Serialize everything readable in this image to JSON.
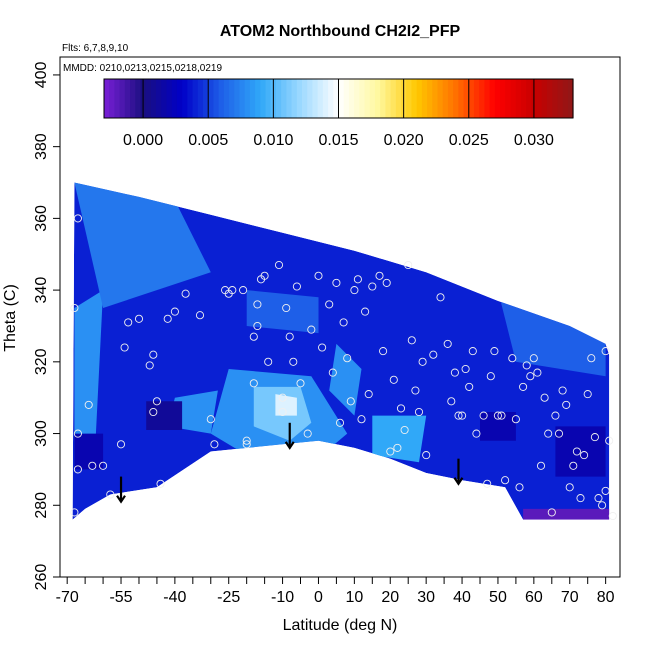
{
  "chart_data": {
    "type": "heatmap",
    "title": "ATOM2 Northbound CH2I2_PFP",
    "note_flights": "Flts: 6,7,8,9,10",
    "note_dates": "MMDD: 0210,0213,0215,0218,0219",
    "xlabel": "Latitude (deg N)",
    "ylabel": "Theta (C)",
    "xlim": [
      -72,
      84
    ],
    "ylim": [
      260,
      405
    ],
    "x_ticks_labeled": [
      -70,
      -55,
      -40,
      -25,
      -10,
      0,
      10,
      20,
      30,
      40,
      50,
      60,
      70,
      80
    ],
    "x_ticks_minor": [
      -65,
      -60,
      -50,
      -45,
      -35,
      -30,
      -20,
      -15,
      -5,
      5,
      15,
      25,
      35,
      45,
      55,
      65,
      75
    ],
    "y_ticks": [
      260,
      280,
      300,
      320,
      340,
      360,
      380,
      400
    ],
    "colorbar": {
      "range": [
        -0.003,
        0.033
      ],
      "ticks": [
        0.0,
        0.005,
        0.01,
        0.015,
        0.02,
        0.025,
        0.03
      ],
      "tick_labels": [
        "0.000",
        "0.005",
        "0.010",
        "0.015",
        "0.020",
        "0.025",
        "0.030"
      ],
      "colors": [
        "#7a1fd8",
        "#1a0f80",
        "#0000c8",
        "#1e5fe8",
        "#30a8f8",
        "#9ad8ff",
        "#ffffff",
        "#fff8a0",
        "#ffc800",
        "#ff7000",
        "#ff0000",
        "#c80000",
        "#901818"
      ]
    },
    "upper_boundary": [
      [
        -68,
        370
      ],
      [
        -50,
        366
      ],
      [
        -30,
        361
      ],
      [
        -10,
        356
      ],
      [
        10,
        351
      ],
      [
        30,
        345
      ],
      [
        50,
        337
      ],
      [
        70,
        330
      ],
      [
        80,
        325
      ],
      [
        81,
        322
      ]
    ],
    "lower_boundary": [
      [
        -68.5,
        276
      ],
      [
        -65,
        279
      ],
      [
        -58,
        283
      ],
      [
        -45,
        285
      ],
      [
        -30,
        295
      ],
      [
        -10,
        297
      ],
      [
        0,
        298
      ],
      [
        10,
        296
      ],
      [
        20,
        293
      ],
      [
        30,
        289
      ],
      [
        40,
        287
      ],
      [
        52,
        285
      ],
      [
        57,
        276
      ],
      [
        81,
        276
      ]
    ],
    "background_value": 0.004,
    "patches": [
      {
        "poly": [
          [
            -25,
            318
          ],
          [
            -2,
            316
          ],
          [
            8,
            300
          ],
          [
            -5,
            289
          ],
          [
            -20,
            294
          ],
          [
            -30,
            300
          ]
        ],
        "value": 0.008
      },
      {
        "poly": [
          [
            -18,
            313
          ],
          [
            -5,
            313
          ],
          [
            -2,
            303
          ],
          [
            -8,
            298
          ],
          [
            -18,
            302
          ]
        ],
        "value": 0.011
      },
      {
        "poly": [
          [
            -12,
            311
          ],
          [
            -6,
            310
          ],
          [
            -6,
            305
          ],
          [
            -12,
            305
          ]
        ],
        "value": 0.014
      },
      {
        "poly": [
          [
            -68,
            335
          ],
          [
            -60,
            340
          ],
          [
            -62,
            300
          ],
          [
            -68,
            290
          ]
        ],
        "value": 0.008
      },
      {
        "poly": [
          [
            -68,
            370
          ],
          [
            -40,
            365
          ],
          [
            -30,
            345
          ],
          [
            -60,
            335
          ]
        ],
        "value": 0.007
      },
      {
        "poly": [
          [
            5,
            325
          ],
          [
            12,
            318
          ],
          [
            10,
            305
          ],
          [
            3,
            312
          ]
        ],
        "value": 0.008
      },
      {
        "poly": [
          [
            15,
            305
          ],
          [
            30,
            305
          ],
          [
            28,
            292
          ],
          [
            15,
            294
          ]
        ],
        "value": 0.009
      },
      {
        "poly": [
          [
            -40,
            310
          ],
          [
            -28,
            312
          ],
          [
            -30,
            300
          ],
          [
            -42,
            302
          ]
        ],
        "value": 0.008
      },
      {
        "poly": [
          [
            -48,
            309
          ],
          [
            -38,
            309
          ],
          [
            -38,
            301
          ],
          [
            -48,
            301
          ]
        ],
        "value": 0.001
      },
      {
        "poly": [
          [
            45,
            306
          ],
          [
            55,
            306
          ],
          [
            55,
            298
          ],
          [
            45,
            298
          ]
        ],
        "value": 0.002
      },
      {
        "poly": [
          [
            66,
            302
          ],
          [
            80,
            302
          ],
          [
            80,
            288
          ],
          [
            66,
            288
          ]
        ],
        "value": 0.002
      },
      {
        "poly": [
          [
            57,
            279
          ],
          [
            81,
            279
          ],
          [
            81,
            276
          ],
          [
            57,
            276
          ]
        ],
        "value": -0.002
      },
      {
        "poly": [
          [
            -68,
            300
          ],
          [
            -60,
            300
          ],
          [
            -60,
            290
          ],
          [
            -68,
            290
          ]
        ],
        "value": 0.002
      },
      {
        "poly": [
          [
            50,
            340
          ],
          [
            80,
            327
          ],
          [
            80,
            316
          ],
          [
            55,
            320
          ]
        ],
        "value": 0.006
      },
      {
        "poly": [
          [
            -20,
            340
          ],
          [
            0,
            338
          ],
          [
            0,
            328
          ],
          [
            -20,
            330
          ]
        ],
        "value": 0.006
      }
    ],
    "sample_points": [
      [
        -68,
        335
      ],
      [
        -67,
        360
      ],
      [
        -67,
        300
      ],
      [
        -67,
        290
      ],
      [
        -68,
        278
      ],
      [
        -64,
        308
      ],
      [
        -60,
        291
      ],
      [
        -63,
        291
      ],
      [
        -58,
        283
      ],
      [
        -55,
        297
      ],
      [
        -54,
        324
      ],
      [
        -53,
        331
      ],
      [
        -50,
        332
      ],
      [
        -47,
        319
      ],
      [
        -46,
        322
      ],
      [
        -46,
        306
      ],
      [
        -45,
        309
      ],
      [
        -44,
        286
      ],
      [
        -42,
        332
      ],
      [
        -40,
        334
      ],
      [
        -37,
        339
      ],
      [
        -33,
        333
      ],
      [
        -30,
        304
      ],
      [
        -29,
        297
      ],
      [
        -26,
        340
      ],
      [
        -25,
        339
      ],
      [
        -24,
        340
      ],
      [
        -21,
        340
      ],
      [
        -20,
        297
      ],
      [
        -20,
        298
      ],
      [
        -18,
        327
      ],
      [
        -18,
        314
      ],
      [
        -17,
        330
      ],
      [
        -17,
        336
      ],
      [
        -16,
        343
      ],
      [
        -15,
        344
      ],
      [
        -14,
        320
      ],
      [
        -11,
        347
      ],
      [
        -10,
        310
      ],
      [
        -10,
        306
      ],
      [
        -9,
        335
      ],
      [
        -8,
        327
      ],
      [
        -7,
        320
      ],
      [
        -6,
        341
      ],
      [
        -5,
        314
      ],
      [
        -3,
        300
      ],
      [
        -2,
        329
      ],
      [
        0,
        344
      ],
      [
        1,
        324
      ],
      [
        3,
        336
      ],
      [
        4,
        317
      ],
      [
        5,
        342
      ],
      [
        6,
        303
      ],
      [
        7,
        331
      ],
      [
        8,
        321
      ],
      [
        9,
        309
      ],
      [
        10,
        340
      ],
      [
        11,
        343
      ],
      [
        12,
        304
      ],
      [
        13,
        334
      ],
      [
        14,
        311
      ],
      [
        15,
        341
      ],
      [
        17,
        344
      ],
      [
        18,
        323
      ],
      [
        19,
        342
      ],
      [
        20,
        295
      ],
      [
        21,
        315
      ],
      [
        22,
        296
      ],
      [
        23,
        307
      ],
      [
        24,
        301
      ],
      [
        25,
        347
      ],
      [
        26,
        326
      ],
      [
        27,
        312
      ],
      [
        28,
        306
      ],
      [
        29,
        320
      ],
      [
        30,
        294
      ],
      [
        32,
        322
      ],
      [
        34,
        338
      ],
      [
        36,
        325
      ],
      [
        37,
        309
      ],
      [
        38,
        317
      ],
      [
        39,
        305
      ],
      [
        40,
        305
      ],
      [
        41,
        318
      ],
      [
        42,
        313
      ],
      [
        43,
        323
      ],
      [
        44,
        300
      ],
      [
        46,
        305
      ],
      [
        47,
        286
      ],
      [
        48,
        316
      ],
      [
        49,
        323
      ],
      [
        50,
        305
      ],
      [
        51,
        305
      ],
      [
        52,
        287
      ],
      [
        54,
        321
      ],
      [
        55,
        304
      ],
      [
        56,
        285
      ],
      [
        57,
        313
      ],
      [
        58,
        319
      ],
      [
        59,
        316
      ],
      [
        60,
        321
      ],
      [
        61,
        317
      ],
      [
        62,
        291
      ],
      [
        63,
        310
      ],
      [
        64,
        300
      ],
      [
        65,
        278
      ],
      [
        66,
        305
      ],
      [
        67,
        300
      ],
      [
        68,
        312
      ],
      [
        69,
        308
      ],
      [
        70,
        285
      ],
      [
        71,
        291
      ],
      [
        72,
        295
      ],
      [
        73,
        282
      ],
      [
        74,
        294
      ],
      [
        75,
        311
      ],
      [
        76,
        321
      ],
      [
        77,
        299
      ],
      [
        78,
        282
      ],
      [
        79,
        280
      ],
      [
        80,
        284
      ],
      [
        80,
        323
      ],
      [
        81,
        298
      ],
      [
        82,
        277
      ]
    ],
    "arrows": [
      {
        "x": -55,
        "y_top": 288,
        "y_bottom": 281
      },
      {
        "x": -8,
        "y_top": 303,
        "y_bottom": 296
      },
      {
        "x": 39,
        "y_top": 293,
        "y_bottom": 286
      }
    ]
  }
}
